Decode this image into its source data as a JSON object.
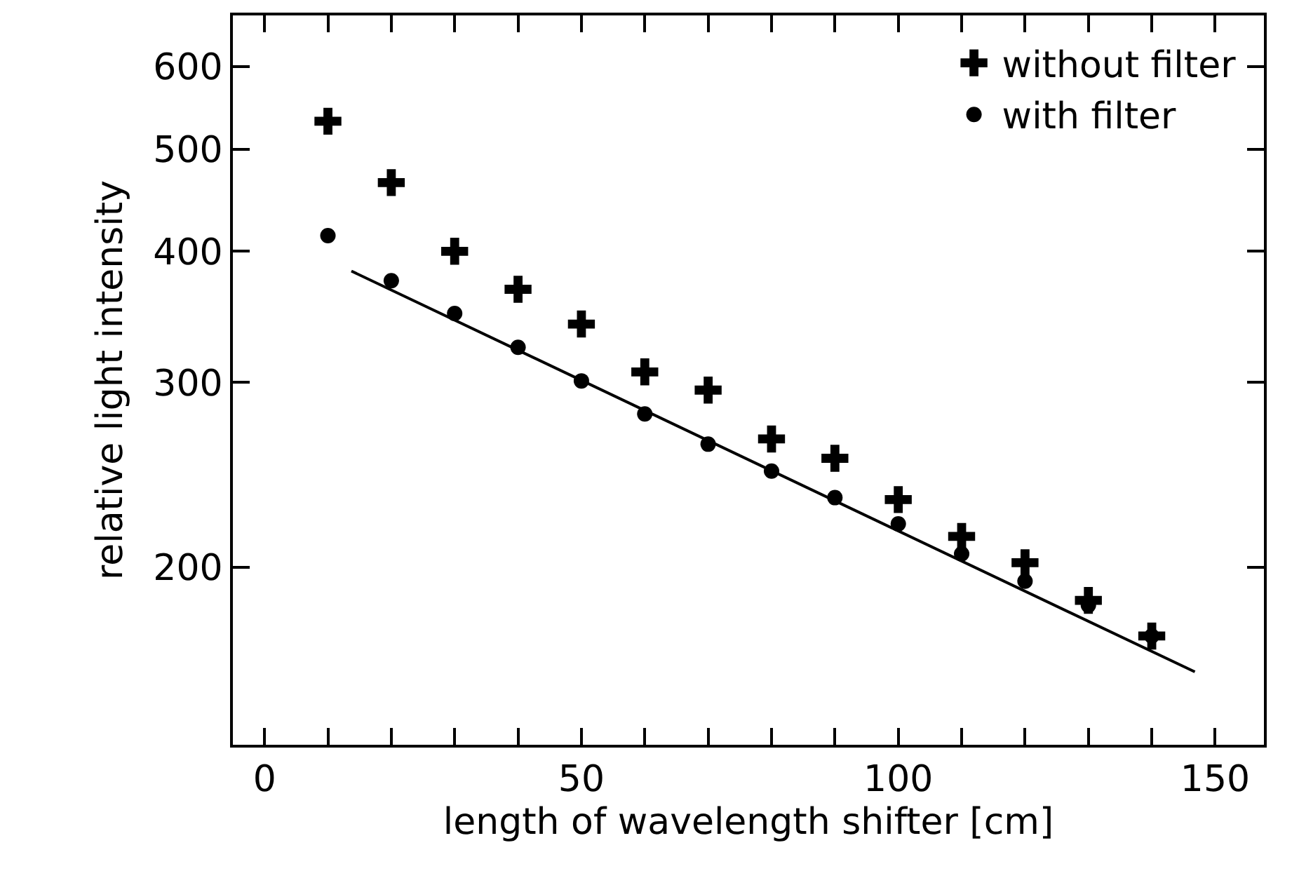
{
  "chart_data": {
    "type": "scatter",
    "xlabel": "length of wavelength shifter [cm]",
    "ylabel": "relative light intensity",
    "log": "y",
    "x": [
      10,
      20,
      30,
      40,
      50,
      60,
      70,
      80,
      90,
      100,
      110,
      120,
      130,
      140
    ],
    "series": [
      {
        "name": "without filter",
        "color": "#000000",
        "marker": "cross",
        "values": [
          532,
          465,
          400,
          368,
          341,
          307,
          295,
          265,
          254,
          232,
          214,
          202,
          186,
          172
        ]
      },
      {
        "name": "with filter",
        "color": "#000000",
        "marker": "circle",
        "values": [
          414,
          375,
          349,
          324,
          301,
          280,
          262,
          247,
          233,
          220,
          206,
          194,
          184,
          172
        ]
      },
      {
        "type": "line",
        "color": "#000000",
        "marker": "none",
        "line_style": "solid",
        "x": [
          13.7,
          146.8
        ],
        "values": [
          383,
          159
        ]
      }
    ],
    "xlim": [
      -5,
      157.7
    ],
    "ylim": [
      135.5,
      671
    ],
    "xticks": [
      0,
      {
        "value": 10,
        "label": null
      },
      {
        "value": 20,
        "label": null
      },
      {
        "value": 30,
        "label": null
      },
      {
        "value": 40,
        "label": null
      },
      50,
      {
        "value": 60,
        "label": null
      },
      {
        "value": 70,
        "label": null
      },
      {
        "value": 80,
        "label": null
      },
      {
        "value": 90,
        "label": null
      },
      100,
      {
        "value": 110,
        "label": null
      },
      {
        "value": 120,
        "label": null
      },
      {
        "value": 130,
        "label": null
      },
      {
        "value": 140,
        "label": null
      },
      150
    ],
    "yticks": [
      200,
      300,
      400,
      500,
      600
    ],
    "grid": false,
    "legend": "top right"
  }
}
